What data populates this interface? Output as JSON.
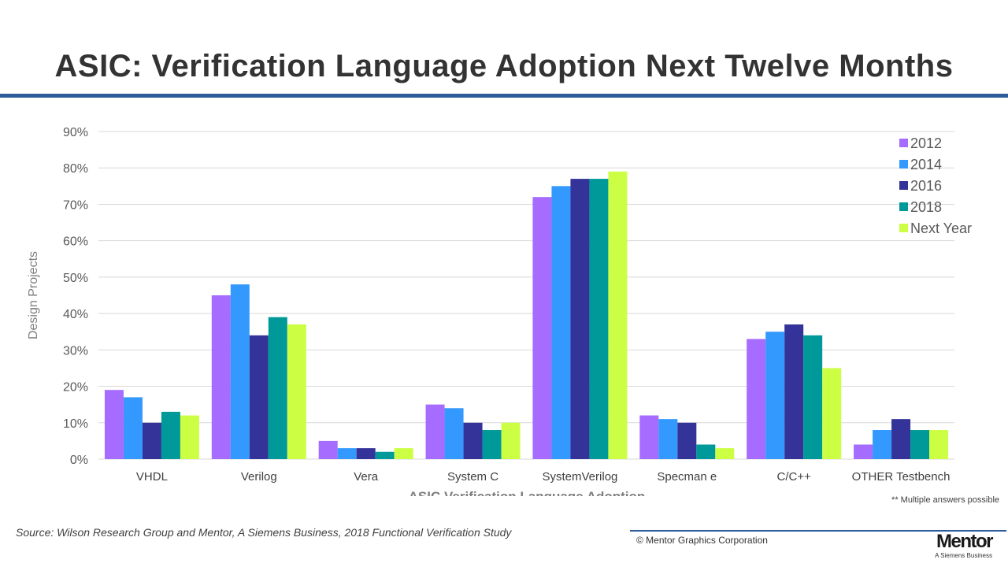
{
  "title": "ASIC: Verification Language Adoption Next Twelve Months",
  "colors": {
    "title_rule": "#2e5b9a",
    "grid": "#d9d9d9"
  },
  "chart_data": {
    "type": "bar",
    "categories": [
      "VHDL",
      "Verilog",
      "Vera",
      "System C",
      "SystemVerilog",
      "Specman e",
      "C/C++",
      "OTHER Testbench"
    ],
    "series": [
      {
        "name": "2012",
        "color": "#a66bff",
        "values": [
          19,
          45,
          5,
          15,
          72,
          12,
          33,
          4
        ]
      },
      {
        "name": "2014",
        "color": "#3399ff",
        "values": [
          17,
          48,
          3,
          14,
          75,
          11,
          35,
          8
        ]
      },
      {
        "name": "2016",
        "color": "#333399",
        "values": [
          10,
          34,
          3,
          10,
          77,
          10,
          37,
          11
        ]
      },
      {
        "name": "2018",
        "color": "#009999",
        "values": [
          13,
          39,
          2,
          8,
          77,
          4,
          34,
          8
        ]
      },
      {
        "name": "Next Year",
        "color": "#ccff44",
        "values": [
          12,
          37,
          3,
          10,
          79,
          3,
          25,
          8
        ]
      }
    ],
    "xlabel": "ASIC Verification Language Adoption",
    "ylabel": "Design Projects",
    "ylim": [
      0,
      90
    ],
    "yticks": [
      "0%",
      "10%",
      "20%",
      "30%",
      "40%",
      "50%",
      "60%",
      "70%",
      "80%",
      "90%"
    ],
    "grid": true,
    "legend": "top-right"
  },
  "note": "** Multiple answers possible",
  "source": "Source:  Wilson Research Group and Mentor, A Siemens Business, 2018 Functional Verification Study",
  "copyright": "© Mentor Graphics Corporation",
  "logo": {
    "name": "Mentor",
    "sub": "A Siemens Business"
  }
}
